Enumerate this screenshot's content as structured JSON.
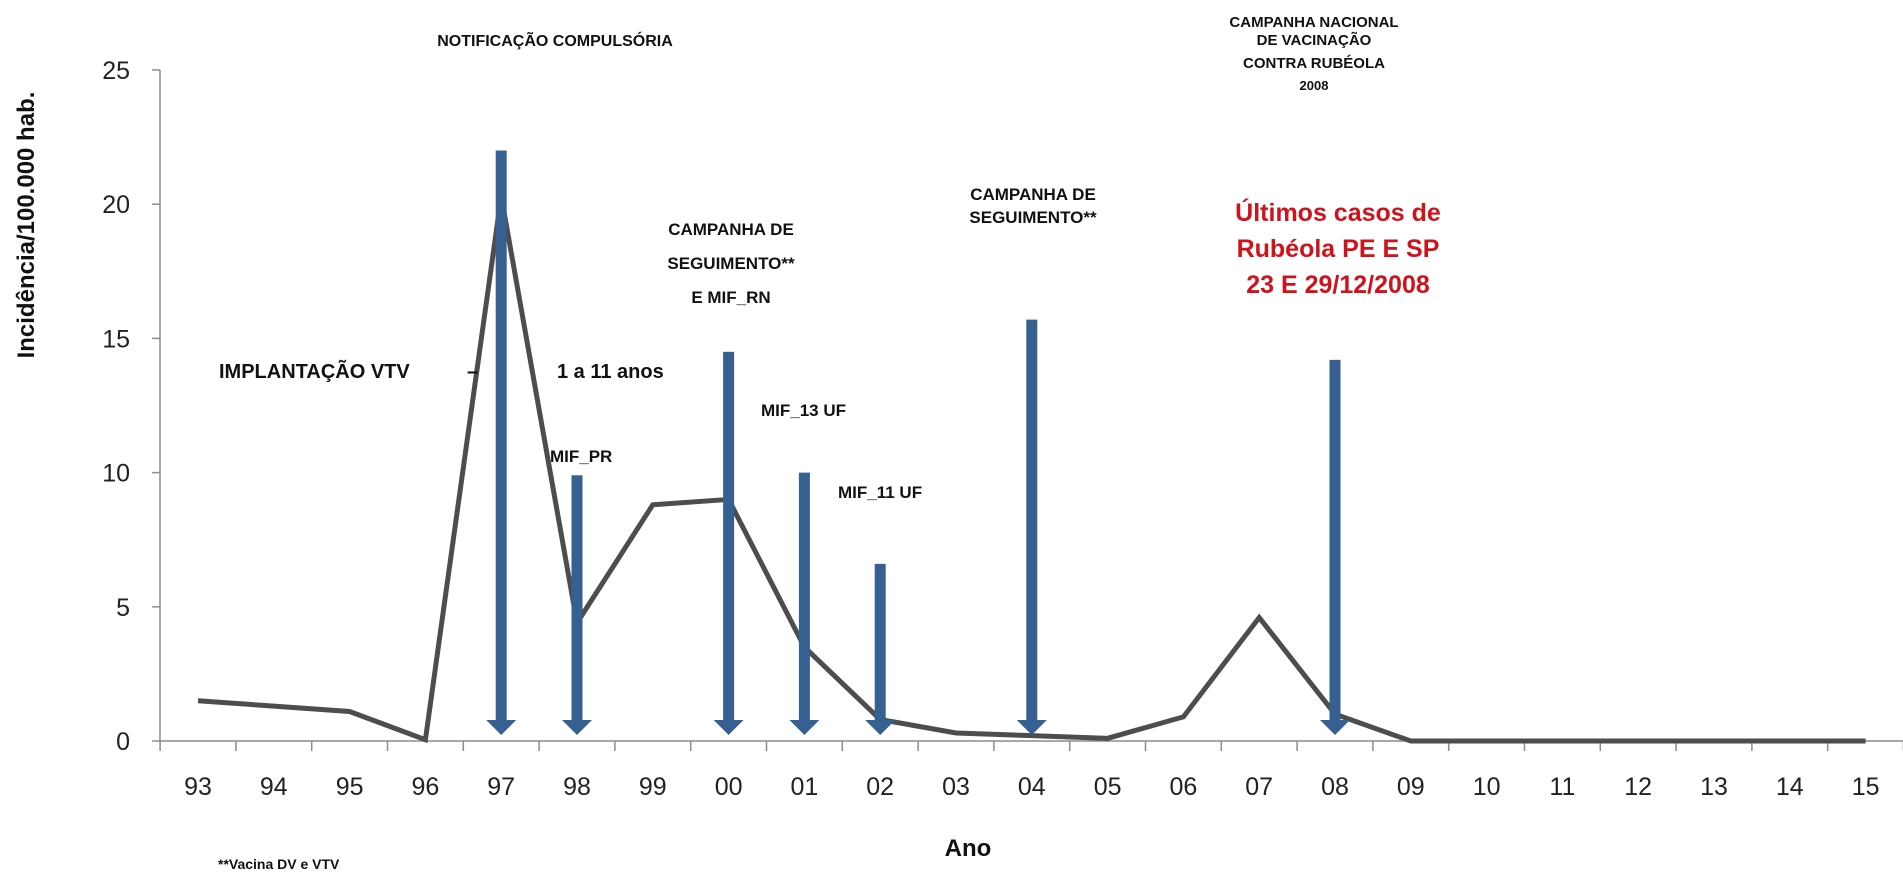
{
  "chart_data": {
    "type": "line",
    "title": "",
    "xlabel": "Ano",
    "ylabel": "Incidência/100.000 hab.",
    "categories": [
      "93",
      "94",
      "95",
      "96",
      "97",
      "98",
      "99",
      "00",
      "01",
      "02",
      "03",
      "04",
      "05",
      "06",
      "07",
      "08",
      "09",
      "10",
      "11",
      "12",
      "13",
      "14",
      "15"
    ],
    "series": [
      {
        "values": [
          1.5,
          1.3,
          1.1,
          0.05,
          20.3,
          4.4,
          8.8,
          9.0,
          3.5,
          0.8,
          0.3,
          0.2,
          0.1,
          0.9,
          4.6,
          1.0,
          0.0,
          0.0,
          0.0,
          0.0,
          0.0,
          0.0,
          0.0
        ]
      }
    ],
    "ylim": [
      0,
      25
    ],
    "yticks": [
      0,
      5,
      10,
      15,
      20,
      25
    ],
    "grid": false,
    "legend": "none",
    "line_color": "#4d4d4d",
    "arrow_color": "#376092",
    "arrows": [
      {
        "x": "97",
        "from": 22.0,
        "to": 0
      },
      {
        "x": "98",
        "from": 9.9,
        "to": 0
      },
      {
        "x": "00",
        "from": 14.5,
        "to": 0
      },
      {
        "x": "01",
        "from": 10.0,
        "to": 0
      },
      {
        "x": "02",
        "from": 6.6,
        "to": 0
      },
      {
        "x": "04",
        "from": 15.7,
        "to": 0
      },
      {
        "x": "08",
        "from": 14.2,
        "to": 0
      }
    ],
    "annotations": {
      "notificacao": "NOTIFICAÇÃO COMPULSÓRIA",
      "campanha_nacional": [
        "CAMPANHA NACIONAL",
        "DE VACINAÇÃO",
        "CONTRA RUBÉOLA",
        "2008"
      ],
      "implantacao": "IMPLANTAÇÃO   VTV",
      "implantacao_dash": "–",
      "faixa_etaria": "1 a 11 anos",
      "mif_pr": "MIF_PR",
      "campanha_seguimento_1": [
        "CAMPANHA  DE",
        "SEGUIMENTO**",
        "E  MIF_RN"
      ],
      "mif_13uf": "MIF_13 UF",
      "mif_11uf": "MIF_11 UF",
      "campanha_seguimento_2": [
        "CAMPANHA  DE",
        "SEGUIMENTO**"
      ],
      "ultimos_casos": [
        "Últimos casos de",
        "Rubéola PE E SP",
        "23 E 29/12/2008"
      ]
    },
    "footnote": "**Vacina  DV e VTV"
  }
}
